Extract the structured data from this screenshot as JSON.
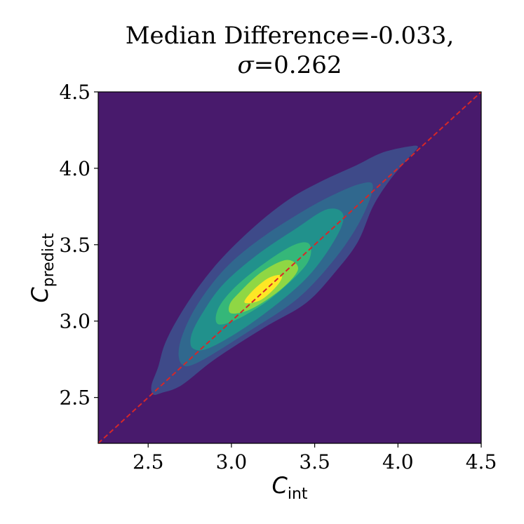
{
  "chart_data": {
    "type": "contour",
    "title_line1": "Median Difference=-0.033,",
    "title_line2_symbol": "σ",
    "title_line2_value": "=0.262",
    "xlabel": {
      "main": "C",
      "sub": "int"
    },
    "ylabel": {
      "main": "C",
      "sub": "predict"
    },
    "xlim": [
      2.2,
      4.5
    ],
    "ylim": [
      2.2,
      4.5
    ],
    "xticks": [
      "2.5",
      "3.0",
      "3.5",
      "4.0",
      "4.5"
    ],
    "yticks": [
      "2.5",
      "3.0",
      "3.5",
      "4.0",
      "4.5"
    ],
    "reference_line": {
      "from": [
        2.2,
        2.2
      ],
      "to": [
        4.5,
        4.5
      ],
      "color": "#d62728",
      "style": "dashed"
    },
    "colormap": "viridis",
    "levels": [
      {
        "level": 0,
        "color": "#481a6c",
        "polygon": []
      },
      {
        "level": 1,
        "color": "#3e4a89",
        "polygon": [
          [
            2.53,
            2.52
          ],
          [
            2.58,
            2.53
          ],
          [
            2.7,
            2.58
          ],
          [
            2.9,
            2.75
          ],
          [
            3.2,
            2.96
          ],
          [
            3.45,
            3.12
          ],
          [
            3.63,
            3.33
          ],
          [
            3.76,
            3.52
          ],
          [
            3.85,
            3.75
          ],
          [
            3.95,
            3.92
          ],
          [
            4.05,
            4.05
          ],
          [
            4.12,
            4.14
          ],
          [
            4.05,
            4.14
          ],
          [
            3.9,
            4.1
          ],
          [
            3.75,
            4.02
          ],
          [
            3.55,
            3.92
          ],
          [
            3.35,
            3.8
          ],
          [
            3.15,
            3.63
          ],
          [
            2.95,
            3.42
          ],
          [
            2.8,
            3.22
          ],
          [
            2.68,
            3.02
          ],
          [
            2.6,
            2.85
          ],
          [
            2.56,
            2.7
          ],
          [
            2.52,
            2.58
          ]
        ]
      },
      {
        "level": 2,
        "color": "#30688e",
        "polygon": [
          [
            2.7,
            2.72
          ],
          [
            2.8,
            2.73
          ],
          [
            3.1,
            2.93
          ],
          [
            3.4,
            3.15
          ],
          [
            3.63,
            3.42
          ],
          [
            3.78,
            3.67
          ],
          [
            3.85,
            3.88
          ],
          [
            3.78,
            3.9
          ],
          [
            3.6,
            3.82
          ],
          [
            3.4,
            3.7
          ],
          [
            3.15,
            3.52
          ],
          [
            2.95,
            3.33
          ],
          [
            2.78,
            3.08
          ],
          [
            2.69,
            2.85
          ]
        ]
      },
      {
        "level": 3,
        "color": "#21918c",
        "polygon": [
          [
            2.77,
            2.82
          ],
          [
            2.88,
            2.83
          ],
          [
            3.15,
            3.01
          ],
          [
            3.45,
            3.28
          ],
          [
            3.63,
            3.55
          ],
          [
            3.67,
            3.7
          ],
          [
            3.57,
            3.73
          ],
          [
            3.38,
            3.6
          ],
          [
            3.15,
            3.43
          ],
          [
            2.95,
            3.24
          ],
          [
            2.83,
            3.06
          ],
          [
            2.76,
            2.91
          ]
        ]
      },
      {
        "level": 4,
        "color": "#35b779",
        "polygon": [
          [
            2.92,
            2.98
          ],
          [
            3.05,
            3.02
          ],
          [
            3.25,
            3.16
          ],
          [
            3.45,
            3.37
          ],
          [
            3.47,
            3.5
          ],
          [
            3.38,
            3.5
          ],
          [
            3.2,
            3.38
          ],
          [
            3.02,
            3.22
          ],
          [
            2.92,
            3.08
          ]
        ]
      },
      {
        "level": 5,
        "color": "#8fd744",
        "polygon": [
          [
            3.0,
            3.05
          ],
          [
            3.12,
            3.08
          ],
          [
            3.3,
            3.21
          ],
          [
            3.4,
            3.34
          ],
          [
            3.33,
            3.4
          ],
          [
            3.18,
            3.32
          ],
          [
            3.05,
            3.19
          ],
          [
            2.99,
            3.11
          ]
        ]
      },
      {
        "level": 6,
        "color": "#fde725",
        "polygon": [
          [
            3.08,
            3.12
          ],
          [
            3.18,
            3.14
          ],
          [
            3.28,
            3.24
          ],
          [
            3.3,
            3.3
          ],
          [
            3.22,
            3.28
          ],
          [
            3.12,
            3.19
          ]
        ]
      }
    ]
  }
}
